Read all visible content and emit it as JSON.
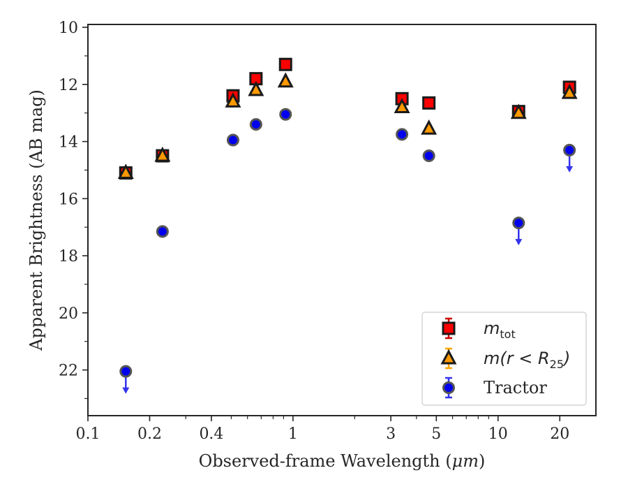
{
  "chart_data": {
    "type": "scatter",
    "xlabel_prefix": "Observed-frame Wavelength (",
    "xlabel_unit": "μm",
    "xlabel_suffix": ")",
    "ylabel": "Apparent Brightness (AB mag)",
    "x_scale": "log",
    "xlim": [
      0.1,
      30
    ],
    "ylim": [
      23.6,
      9.9
    ],
    "y_inverted": true,
    "grid": false,
    "legend_position": "lower right",
    "x_ticks": [
      {
        "value": 0.1,
        "label": "0.1"
      },
      {
        "value": 0.2,
        "label": "0.2"
      },
      {
        "value": 0.4,
        "label": "0.4"
      },
      {
        "value": 1,
        "label": "1"
      },
      {
        "value": 3,
        "label": "3"
      },
      {
        "value": 5,
        "label": "5"
      },
      {
        "value": 10,
        "label": "10"
      },
      {
        "value": 20,
        "label": "20"
      }
    ],
    "y_ticks": [
      {
        "value": 10,
        "label": "10"
      },
      {
        "value": 12,
        "label": "12"
      },
      {
        "value": 14,
        "label": "14"
      },
      {
        "value": 16,
        "label": "16"
      },
      {
        "value": 18,
        "label": "18"
      },
      {
        "value": 20,
        "label": "20"
      },
      {
        "value": 22,
        "label": "22"
      }
    ],
    "series": [
      {
        "id": "mtot",
        "legend_math": "m",
        "legend_sub": "tot",
        "marker": "square",
        "color": "#ff0000",
        "errcolor": "#cc0000",
        "points": [
          {
            "x": 0.153,
            "y": 15.1
          },
          {
            "x": 0.231,
            "y": 14.5
          },
          {
            "x": 0.51,
            "y": 12.4
          },
          {
            "x": 0.66,
            "y": 11.8
          },
          {
            "x": 0.92,
            "y": 11.3
          },
          {
            "x": 3.4,
            "y": 12.5
          },
          {
            "x": 4.6,
            "y": 12.65
          },
          {
            "x": 12.6,
            "y": 12.95
          },
          {
            "x": 22.3,
            "y": 12.1
          }
        ]
      },
      {
        "id": "m_r25",
        "legend_math": "m(r < R",
        "legend_sub": "25",
        "legend_math_end": ")",
        "marker": "triangle",
        "color": "#ff9900",
        "errcolor": "#ffa500",
        "points": [
          {
            "x": 0.153,
            "y": 15.1
          },
          {
            "x": 0.231,
            "y": 14.5
          },
          {
            "x": 0.51,
            "y": 12.6
          },
          {
            "x": 0.66,
            "y": 12.2
          },
          {
            "x": 0.92,
            "y": 11.9
          },
          {
            "x": 3.4,
            "y": 12.8
          },
          {
            "x": 4.6,
            "y": 13.55
          },
          {
            "x": 12.6,
            "y": 13.0
          },
          {
            "x": 22.3,
            "y": 12.3
          }
        ]
      },
      {
        "id": "tractor",
        "legend_label": "Tractor",
        "marker": "circle",
        "color": "#0000ee",
        "errcolor": "#3333ee",
        "points": [
          {
            "x": 0.153,
            "y": 22.05,
            "upper_limit": true
          },
          {
            "x": 0.231,
            "y": 17.15
          },
          {
            "x": 0.51,
            "y": 13.95
          },
          {
            "x": 0.66,
            "y": 13.4
          },
          {
            "x": 0.92,
            "y": 13.05
          },
          {
            "x": 3.4,
            "y": 13.75
          },
          {
            "x": 4.6,
            "y": 14.5
          },
          {
            "x": 12.6,
            "y": 16.85,
            "upper_limit": true
          },
          {
            "x": 22.3,
            "y": 14.3,
            "upper_limit": true
          }
        ]
      }
    ]
  }
}
